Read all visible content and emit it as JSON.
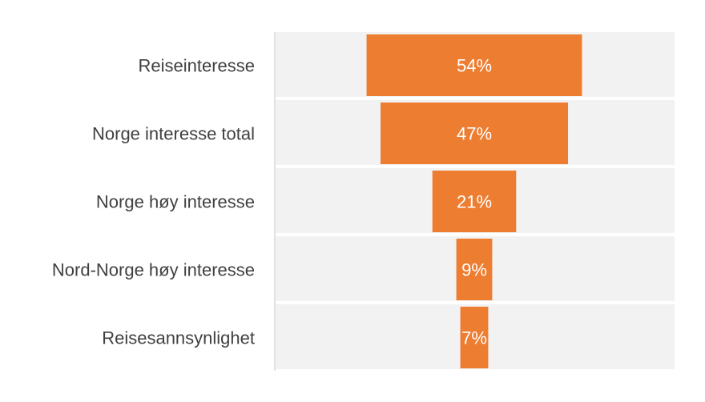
{
  "chart_data": {
    "type": "bar",
    "subtype": "funnel",
    "categories": [
      "Reiseinteresse",
      "Norge interesse total",
      "Norge høy interesse",
      "Nord-Norge høy interesse",
      "Reisesannsynlighet"
    ],
    "values": [
      54,
      47,
      21,
      9,
      7
    ],
    "value_labels": [
      "54%",
      "47%",
      "21%",
      "9%",
      "7%"
    ],
    "unit": "%",
    "xlim": [
      0,
      100
    ],
    "title": "",
    "xlabel": "",
    "ylabel": "",
    "grid": false,
    "legend": "none"
  },
  "colors": {
    "bar": "#ED7D31",
    "row_background": "#F2F2F2",
    "axis_line": "#D9D9D9",
    "category_text": "#404040",
    "value_text": "#FFFFFF"
  }
}
